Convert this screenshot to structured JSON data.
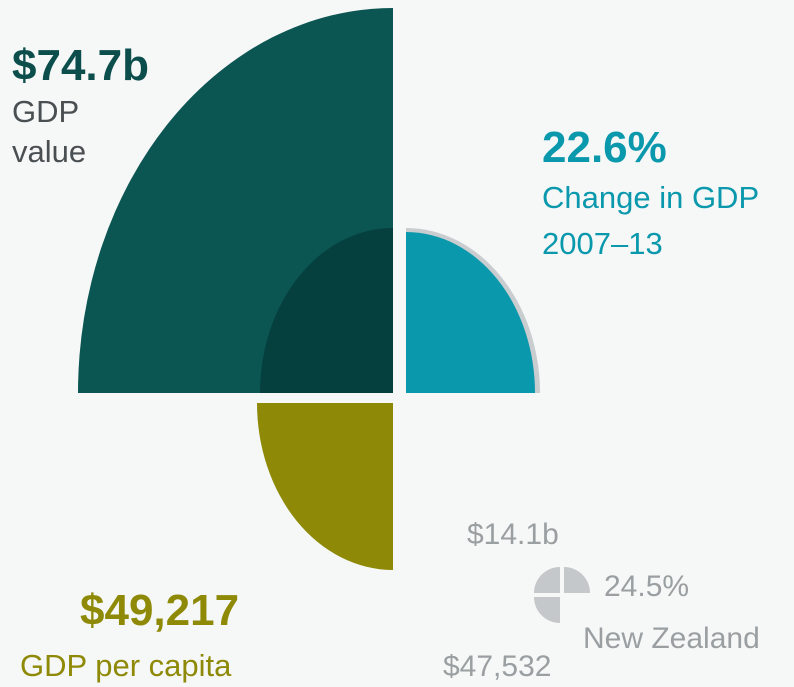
{
  "main": {
    "gdp_value": "$74.7b",
    "gdp_value_label": "GDP value",
    "change": "22.6%",
    "change_label": "Change in GDP 2007–13",
    "per_capita": "$49,217",
    "per_capita_label": "GDP per capita"
  },
  "comparison": {
    "name": "New Zealand",
    "gdp_value": "$14.1b",
    "change": "24.5%",
    "per_capita": "$47,532"
  }
}
